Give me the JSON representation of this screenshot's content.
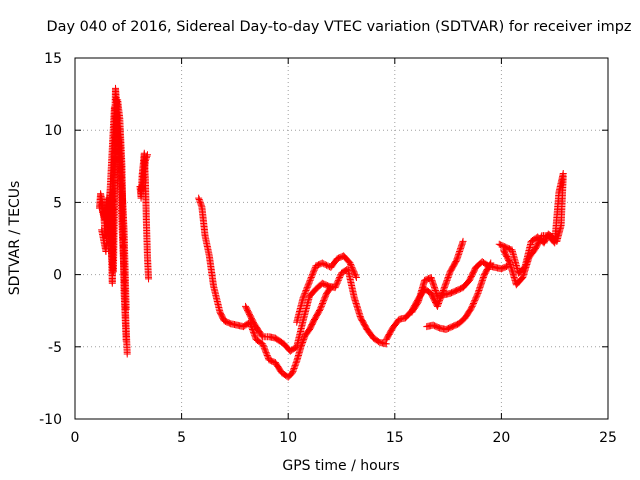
{
  "chart_data": {
    "type": "scatter",
    "title": "Day 040 of 2016, Sidereal Day-to-day VTEC variation (SDTVAR) for receiver impz",
    "xlabel": "GPS time / hours",
    "ylabel": "SDTVAR / TECUs",
    "xlim": [
      0,
      25
    ],
    "ylim": [
      -10,
      15
    ],
    "xticks": [
      0,
      5,
      10,
      15,
      20,
      25
    ],
    "yticks": [
      -10,
      -5,
      0,
      5,
      10,
      15
    ],
    "grid": true,
    "marker": "+",
    "color": "#ff0000",
    "series": [
      {
        "name": "SDTVAR",
        "segments": [
          {
            "x": [
              1.15,
              1.2,
              1.3,
              1.4,
              1.5,
              1.55,
              1.6,
              1.65,
              1.7,
              1.75,
              1.8,
              1.9,
              2.0,
              2.1,
              2.2,
              2.3,
              2.4
            ],
            "y": [
              4.6,
              5.6,
              4.9,
              3.2,
              2.5,
              4.4,
              3.7,
              5.8,
              2.1,
              -0.6,
              6.3,
              12.9,
              11.0,
              9.6,
              6.2,
              3.1,
              -2.4
            ]
          },
          {
            "x": [
              1.2,
              1.3,
              1.4,
              1.5,
              1.6,
              1.7,
              1.8,
              1.9,
              2.0,
              2.1,
              2.2,
              2.3,
              2.4
            ],
            "y": [
              5.2,
              4.3,
              3.8,
              5.3,
              2.8,
              1.7,
              0.2,
              8.7,
              12.1,
              10.8,
              7.6,
              -1.1,
              -4.6
            ]
          },
          {
            "x": [
              1.25,
              1.45,
              1.65,
              1.85,
              2.05,
              2.25,
              2.45
            ],
            "y": [
              3.1,
              1.6,
              5.9,
              11.6,
              9.2,
              1.8,
              -5.5
            ]
          },
          {
            "x": [
              3.05,
              3.1,
              3.15,
              3.2,
              3.25,
              3.3,
              3.35,
              3.4,
              3.45
            ],
            "y": [
              6.1,
              5.3,
              6.9,
              7.6,
              8.4,
              6.6,
              3.6,
              1.2,
              -0.3
            ]
          },
          {
            "x": [
              3.1,
              3.2,
              3.3,
              3.4
            ],
            "y": [
              5.8,
              6.4,
              7.9,
              8.3
            ]
          },
          {
            "x": [
              5.8,
              5.95,
              6.1,
              6.3,
              6.5,
              6.8,
              7.0,
              7.3,
              7.6,
              7.9,
              8.2,
              8.5,
              8.8,
              9.1,
              9.4,
              9.7,
              10.0,
              10.2,
              10.4,
              10.6,
              10.8,
              11.0,
              11.2,
              11.5,
              11.8,
              12.0
            ],
            "y": [
              5.3,
              4.7,
              2.7,
              1.3,
              -0.8,
              -2.6,
              -3.2,
              -3.4,
              -3.5,
              -3.6,
              -3.3,
              -4.5,
              -4.8,
              -5.9,
              -6.1,
              -6.8,
              -7.1,
              -6.8,
              -6.0,
              -5.0,
              -4.2,
              -3.8,
              -3.2,
              -2.4,
              -1.3,
              -0.9
            ]
          },
          {
            "x": [
              8.0,
              8.4,
              8.8,
              9.1,
              9.4,
              9.8,
              10.1,
              10.4,
              10.7,
              11.0,
              11.3,
              11.6,
              11.9,
              12.2,
              12.5,
              12.8,
              13.1,
              13.4,
              13.7,
              14.0,
              14.3,
              14.6
            ],
            "y": [
              -2.2,
              -3.4,
              -4.3,
              -4.3,
              -4.4,
              -4.8,
              -5.3,
              -5.0,
              -3.2,
              -1.5,
              -1.0,
              -0.6,
              -0.8,
              -0.9,
              0.1,
              0.4,
              -1.6,
              -3.0,
              -3.8,
              -4.4,
              -4.7,
              -4.8
            ]
          },
          {
            "x": [
              10.4,
              10.7,
              11.0,
              11.3,
              11.6,
              12.0,
              12.3,
              12.6,
              12.9,
              13.2
            ],
            "y": [
              -3.3,
              -1.6,
              -0.5,
              0.6,
              0.8,
              0.5,
              1.1,
              1.3,
              0.8,
              -0.2
            ]
          },
          {
            "x": [
              14.6,
              14.9,
              15.2,
              15.5,
              15.8,
              16.1,
              16.4,
              16.7,
              17.0,
              17.3,
              17.6,
              17.9,
              18.2
            ],
            "y": [
              -4.5,
              -3.7,
              -3.1,
              -3.0,
              -2.5,
              -1.7,
              -1.0,
              -1.3,
              -2.2,
              -1.0,
              0.2,
              1.0,
              2.3
            ]
          },
          {
            "x": [
              15.8,
              16.1,
              16.4,
              16.7,
              17.0,
              17.3,
              17.6,
              17.9,
              18.2,
              18.5,
              18.8,
              19.1,
              19.4,
              19.7,
              20.0,
              20.3
            ],
            "y": [
              -2.6,
              -1.9,
              -0.4,
              -0.2,
              -1.5,
              -1.4,
              -1.3,
              -1.1,
              -0.9,
              -0.4,
              0.5,
              0.9,
              0.6,
              0.5,
              0.4,
              0.6
            ]
          },
          {
            "x": [
              16.5,
              16.8,
              17.1,
              17.4,
              17.7,
              18.0,
              18.3,
              18.6,
              18.9,
              19.2,
              19.5
            ],
            "y": [
              -3.6,
              -3.5,
              -3.7,
              -3.8,
              -3.6,
              -3.4,
              -3.0,
              -2.3,
              -1.3,
              0.0,
              0.8
            ]
          },
          {
            "x": [
              19.9,
              20.2,
              20.5,
              20.8,
              21.1,
              21.4,
              21.7,
              22.0,
              22.2,
              22.4,
              22.6,
              22.8,
              22.9
            ],
            "y": [
              2.1,
              1.9,
              1.7,
              0.1,
              0.5,
              2.3,
              2.6,
              2.2,
              2.8,
              2.6,
              2.3,
              3.4,
              6.8
            ]
          },
          {
            "x": [
              20.1,
              20.4,
              20.7,
              21.0,
              21.3,
              21.6,
              21.9,
              22.2,
              22.5,
              22.7,
              22.9
            ],
            "y": [
              1.7,
              0.8,
              -0.7,
              -0.2,
              1.2,
              1.8,
              2.7,
              2.7,
              2.2,
              5.7,
              7.0
            ]
          }
        ]
      }
    ]
  }
}
